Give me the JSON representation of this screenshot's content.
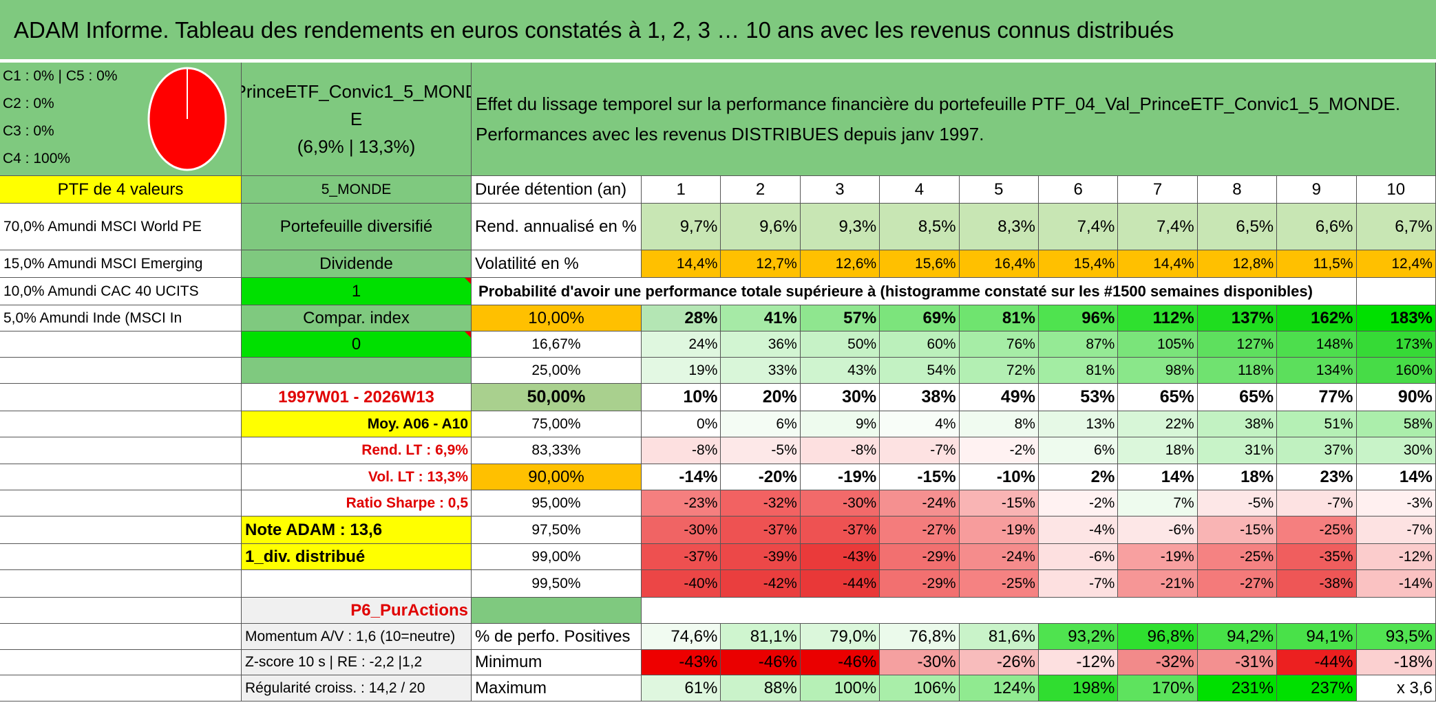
{
  "title": "ADAM Informe. Tableau des rendements en euros constatés à 1, 2, 3 … 10 ans avec les revenus connus distribués",
  "colors": {
    "green": "#7fc97f",
    "yellow": "#ffff00",
    "orange": "#ffc000",
    "bright_green": "#00e000",
    "red_text": "#e00000",
    "pie_red": "#ff0000"
  },
  "composition": {
    "line1": "C1 : 0% | C5 : 0%",
    "line2": "C2 : 0%",
    "line3": "C3 : 0%",
    "line4": "C4 : 100%",
    "pie_icon": "pie-chart-icon",
    "pie_c4_percent": 100
  },
  "fund": {
    "name_line1": "PrinceETF_Convic1_5_MOND",
    "name_line2": "E",
    "stats": "(6,9% | 13,3%)"
  },
  "effect": {
    "line1": "Effet du lissage temporel sur la performance financière du portefeuille PTF_04_Val_PrinceETF_Convic1_5_MONDE.",
    "line2": "Performances avec les revenus DISTRIBUES depuis janv 1997."
  },
  "left": {
    "ptf_label": "PTF de 4 valeurs",
    "assets": [
      "70,0% Amundi MSCI World PE",
      "15,0% Amundi MSCI Emerging",
      "10,0% Amundi CAC 40 UCITS",
      "5,0% Amundi Inde (MSCI In"
    ]
  },
  "mid": {
    "region": "5_MONDE",
    "diversified": "Portefeuille diversifié",
    "dividende_label": "Dividende",
    "dividende_value": "1",
    "compar_label": "Compar. index",
    "compar_value": "0",
    "period": "1997W01 - 2026W13",
    "moy": "Moy. A06 - A10",
    "rend_lt": "Rend. LT : 6,9%",
    "vol_lt": "Vol. LT : 13,3%",
    "sharpe": "Ratio Sharpe : 0,5",
    "note": "Note ADAM : 13,6",
    "div": "1_div. distribué",
    "p6": "P6_PurActions",
    "momentum": "Momentum A/V : 1,6 (10=neutre)",
    "zscore": "Z-score 10 s | RE : -2,2 |1,2",
    "regularite": "Régularité croiss. : 14,2 / 20"
  },
  "table": {
    "duration_label": "Durée détention (an)",
    "years": [
      "1",
      "2",
      "3",
      "4",
      "5",
      "6",
      "7",
      "8",
      "9",
      "10"
    ],
    "rend_label": "Rend. annualisé en %",
    "rend": [
      "9,7%",
      "9,6%",
      "9,3%",
      "8,5%",
      "8,3%",
      "7,4%",
      "7,4%",
      "6,5%",
      "6,6%",
      "6,7%"
    ],
    "vol_label": "Volatilité en %",
    "vol": [
      "14,4%",
      "12,7%",
      "12,6%",
      "15,6%",
      "16,4%",
      "15,4%",
      "14,4%",
      "12,8%",
      "11,5%",
      "12,4%"
    ],
    "prob_label": "Probabilité d'avoir une performance totale supérieure à (histogramme constaté sur les #1500 semaines disponibles)",
    "quantiles": [
      {
        "label": "10,00%",
        "values": [
          "28%",
          "41%",
          "57%",
          "69%",
          "81%",
          "96%",
          "112%",
          "137%",
          "162%",
          "183%"
        ]
      },
      {
        "label": "16,67%",
        "values": [
          "24%",
          "36%",
          "50%",
          "60%",
          "76%",
          "87%",
          "105%",
          "127%",
          "148%",
          "173%"
        ]
      },
      {
        "label": "25,00%",
        "values": [
          "19%",
          "33%",
          "43%",
          "54%",
          "72%",
          "81%",
          "98%",
          "118%",
          "134%",
          "160%"
        ]
      },
      {
        "label": "50,00%",
        "values": [
          "10%",
          "20%",
          "30%",
          "38%",
          "49%",
          "53%",
          "65%",
          "65%",
          "77%",
          "90%"
        ]
      },
      {
        "label": "75,00%",
        "values": [
          "0%",
          "6%",
          "9%",
          "4%",
          "8%",
          "13%",
          "22%",
          "38%",
          "51%",
          "58%"
        ]
      },
      {
        "label": "83,33%",
        "values": [
          "-8%",
          "-5%",
          "-8%",
          "-7%",
          "-2%",
          "6%",
          "18%",
          "31%",
          "37%",
          "30%"
        ]
      },
      {
        "label": "90,00%",
        "values": [
          "-14%",
          "-20%",
          "-19%",
          "-15%",
          "-10%",
          "2%",
          "14%",
          "18%",
          "23%",
          "14%"
        ]
      },
      {
        "label": "95,00%",
        "values": [
          "-23%",
          "-32%",
          "-30%",
          "-24%",
          "-15%",
          "-2%",
          "7%",
          "-5%",
          "-7%",
          "-3%"
        ]
      },
      {
        "label": "97,50%",
        "values": [
          "-30%",
          "-37%",
          "-37%",
          "-27%",
          "-19%",
          "-4%",
          "-6%",
          "-15%",
          "-25%",
          "-7%"
        ]
      },
      {
        "label": "99,00%",
        "values": [
          "-37%",
          "-39%",
          "-43%",
          "-29%",
          "-24%",
          "-6%",
          "-19%",
          "-25%",
          "-35%",
          "-12%"
        ]
      },
      {
        "label": "99,50%",
        "values": [
          "-40%",
          "-42%",
          "-44%",
          "-29%",
          "-25%",
          "-7%",
          "-21%",
          "-27%",
          "-38%",
          "-14%"
        ]
      }
    ],
    "pos_label": "% de perfo. Positives",
    "pos": [
      "74,6%",
      "81,1%",
      "79,0%",
      "76,8%",
      "81,6%",
      "93,2%",
      "96,8%",
      "94,2%",
      "94,1%",
      "93,5%"
    ],
    "min_label": "Minimum",
    "min": [
      "-43%",
      "-46%",
      "-46%",
      "-30%",
      "-26%",
      "-12%",
      "-32%",
      "-31%",
      "-44%",
      "-18%"
    ],
    "max_label": "Maximum",
    "max": [
      "61%",
      "88%",
      "100%",
      "106%",
      "124%",
      "198%",
      "170%",
      "231%",
      "237%",
      "x 3,6"
    ]
  }
}
